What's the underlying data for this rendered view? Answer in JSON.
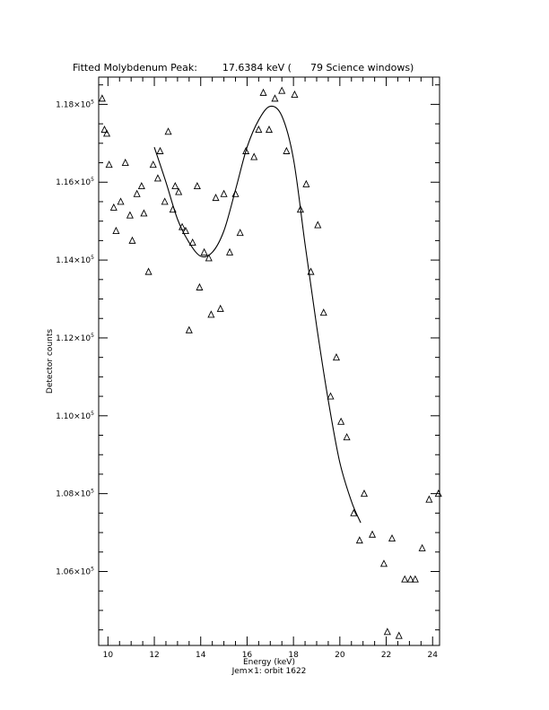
{
  "chart_data": {
    "type": "scatter",
    "title": "Fitted Molybdenum Peak:        17.6384 keV (      79 Science windows)",
    "xlabel": "Energy (keV)",
    "ylabel": "Detector counts",
    "subtitle": "Jem×1: orbit 1622",
    "xlim": [
      9.6,
      24.3
    ],
    "ylim": [
      104100,
      118700
    ],
    "x_ticks": [
      {
        "value": 10,
        "label": "10"
      },
      {
        "value": 12,
        "label": "12"
      },
      {
        "value": 14,
        "label": "14"
      },
      {
        "value": 16,
        "label": "16"
      },
      {
        "value": 18,
        "label": "18"
      },
      {
        "value": 20,
        "label": "20"
      },
      {
        "value": 22,
        "label": "22"
      },
      {
        "value": 24,
        "label": "24"
      }
    ],
    "y_ticks": [
      {
        "value": 106000,
        "mantissa": "1.06",
        "exponent": "5"
      },
      {
        "value": 108000,
        "mantissa": "1.08",
        "exponent": "5"
      },
      {
        "value": 110000,
        "mantissa": "1.10",
        "exponent": "5"
      },
      {
        "value": 112000,
        "mantissa": "1.12",
        "exponent": "5"
      },
      {
        "value": 114000,
        "mantissa": "1.14",
        "exponent": "5"
      },
      {
        "value": 116000,
        "mantissa": "1.16",
        "exponent": "5"
      },
      {
        "value": 118000,
        "mantissa": "1.18",
        "exponent": "5"
      }
    ],
    "series": [
      {
        "marker": "triangle",
        "points": [
          [
            9.75,
            118150
          ],
          [
            9.85,
            117350
          ],
          [
            9.95,
            117250
          ],
          [
            10.05,
            116450
          ],
          [
            10.25,
            115350
          ],
          [
            10.35,
            114750
          ],
          [
            10.55,
            115500
          ],
          [
            10.75,
            116500
          ],
          [
            10.95,
            115150
          ],
          [
            11.05,
            114500
          ],
          [
            11.25,
            115700
          ],
          [
            11.45,
            115900
          ],
          [
            11.55,
            115200
          ],
          [
            11.75,
            113700
          ],
          [
            11.95,
            116450
          ],
          [
            12.15,
            116100
          ],
          [
            12.25,
            116800
          ],
          [
            12.45,
            115500
          ],
          [
            12.6,
            117300
          ],
          [
            12.8,
            115300
          ],
          [
            12.9,
            115900
          ],
          [
            13.05,
            115750
          ],
          [
            13.2,
            114850
          ],
          [
            13.35,
            114750
          ],
          [
            13.5,
            112200
          ],
          [
            13.65,
            114450
          ],
          [
            13.85,
            115900
          ],
          [
            13.95,
            113300
          ],
          [
            14.15,
            114200
          ],
          [
            14.35,
            114050
          ],
          [
            14.45,
            112600
          ],
          [
            14.65,
            115600
          ],
          [
            14.85,
            112750
          ],
          [
            15.0,
            115700
          ],
          [
            15.25,
            114200
          ],
          [
            15.5,
            115700
          ],
          [
            15.7,
            114700
          ],
          [
            15.95,
            116800
          ],
          [
            16.3,
            116650
          ],
          [
            16.5,
            117350
          ],
          [
            16.7,
            118300
          ],
          [
            16.95,
            117350
          ],
          [
            17.2,
            118150
          ],
          [
            17.5,
            118350
          ],
          [
            17.7,
            116800
          ],
          [
            18.05,
            118250
          ],
          [
            18.3,
            115300
          ],
          [
            18.55,
            115950
          ],
          [
            18.75,
            113700
          ],
          [
            19.05,
            114900
          ],
          [
            19.3,
            112650
          ],
          [
            19.6,
            110500
          ],
          [
            19.85,
            111500
          ],
          [
            20.05,
            109850
          ],
          [
            20.3,
            109450
          ],
          [
            20.6,
            107500
          ],
          [
            20.85,
            106800
          ],
          [
            21.05,
            108000
          ],
          [
            21.4,
            106950
          ],
          [
            21.9,
            106200
          ],
          [
            22.05,
            104450
          ],
          [
            22.25,
            106850
          ],
          [
            22.55,
            104350
          ],
          [
            22.8,
            105800
          ],
          [
            23.05,
            105800
          ],
          [
            23.25,
            105800
          ],
          [
            23.55,
            106600
          ],
          [
            23.85,
            107850
          ],
          [
            24.25,
            108000
          ]
        ]
      },
      {
        "type": "line",
        "x": [
          12.0,
          12.5,
          13.0,
          13.5,
          14.0,
          14.5,
          15.0,
          15.5,
          16.0,
          16.5,
          17.0,
          17.5,
          18.0,
          18.5,
          19.0,
          19.5,
          20.0,
          20.5,
          20.9
        ],
        "y": [
          116900,
          116000,
          115050,
          114450,
          114100,
          114200,
          114750,
          115800,
          116900,
          117600,
          117950,
          117700,
          116600,
          114400,
          112300,
          110400,
          108800,
          107800,
          107250
        ]
      }
    ]
  }
}
